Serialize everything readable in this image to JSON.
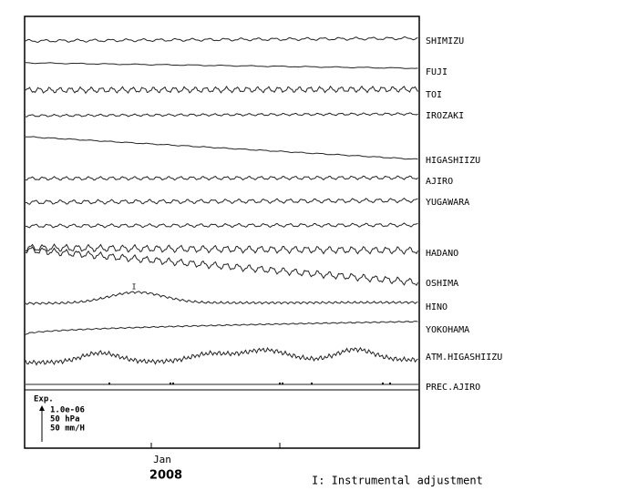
{
  "stations": [
    "SHIMIZU",
    "FUJI",
    "TOI",
    "IROZAKI",
    "HIGASHIIZU",
    "AJIRO",
    "YUGAWARA",
    "HADANO",
    "OSHIMA",
    "HINO",
    "YOKOHAMA",
    "ATM.HIGASHIIZU",
    "PREC.AJIRO"
  ],
  "x_label": "Jan",
  "year": "2008",
  "scale_legend": {
    "title": "Exp.",
    "items": [
      "1.0e-06",
      "50 hPa",
      "50 mm/H"
    ]
  },
  "adjustment_mark": "I",
  "footnote": "I: Instrumental adjustment"
}
